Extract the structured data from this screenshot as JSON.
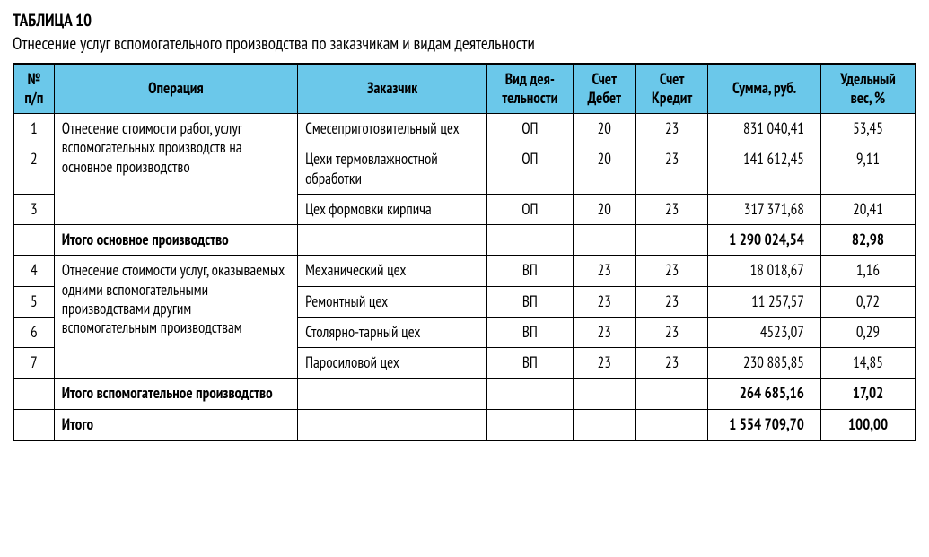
{
  "colors": {
    "header_bg": "#6bc8ea",
    "border": "#000000",
    "text": "#000000",
    "background": "#ffffff"
  },
  "title": {
    "number": "ТАБЛИЦА 10",
    "caption": "Отнесение услуг вспомогательного производства по заказчикам и видам деятельности"
  },
  "columns": [
    {
      "key": "num",
      "label": "№ п/п",
      "width_pct": 4.5,
      "align": "center"
    },
    {
      "key": "op",
      "label": "Операция",
      "width_pct": 27,
      "align": "left"
    },
    {
      "key": "cust",
      "label": "Заказчик",
      "width_pct": 21,
      "align": "left"
    },
    {
      "key": "act",
      "label": "Вид дея­тельности",
      "width_pct": 9.5,
      "align": "center"
    },
    {
      "key": "deb",
      "label": "Счет Дебет",
      "width_pct": 7,
      "align": "center"
    },
    {
      "key": "cred",
      "label": "Счет Кредит",
      "width_pct": 8,
      "align": "center"
    },
    {
      "key": "sum",
      "label": "Сумма, руб.",
      "width_pct": 12.5,
      "align": "right"
    },
    {
      "key": "wt",
      "label": "Удельный вес, %",
      "width_pct": 10.5,
      "align": "center"
    }
  ],
  "groups": [
    {
      "op_text": "Отнесение стоимости работ, услуг вспомогательных производств на основное производство",
      "rows": [
        {
          "num": "1",
          "cust": "Смесеприготовительный цех",
          "act": "ОП",
          "deb": "20",
          "cred": "23",
          "sum": "831 040,41",
          "wt": "53,45"
        },
        {
          "num": "2",
          "cust": "Цехи термовлажностной обработки",
          "act": "ОП",
          "deb": "20",
          "cred": "23",
          "sum": "141 612,45",
          "wt": "9,11"
        },
        {
          "num": "3",
          "cust": "Цех формовки кирпича",
          "act": "ОП",
          "deb": "20",
          "cred": "23",
          "sum": "317 371,68",
          "wt": "20,41"
        }
      ],
      "subtotal": {
        "label": "Итого основное производство",
        "sum": "1 290 024,54",
        "wt": "82,98"
      }
    },
    {
      "op_text": "Отнесение стоимости услуг, оказываемых одними вспомогательными производствами другим вспомогательным производствам",
      "rows": [
        {
          "num": "4",
          "cust": "Механический цех",
          "act": "ВП",
          "deb": "23",
          "cred": "23",
          "sum": "18 018,67",
          "wt": "1,16"
        },
        {
          "num": "5",
          "cust": "Ремонтный цех",
          "act": "ВП",
          "deb": "23",
          "cred": "23",
          "sum": "11 257,57",
          "wt": "0,72"
        },
        {
          "num": "6",
          "cust": "Столярно-тарный цех",
          "act": "ВП",
          "deb": "23",
          "cred": "23",
          "sum": "4523,07",
          "wt": "0,29"
        },
        {
          "num": "7",
          "cust": "Паросиловой цех",
          "act": "ВП",
          "deb": "23",
          "cred": "23",
          "sum": "230 885,85",
          "wt": "14,85"
        }
      ],
      "subtotal": {
        "label": "Итого вспомогательное производство",
        "sum": "264 685,16",
        "wt": "17,02"
      }
    }
  ],
  "grand_total": {
    "label": "Итого",
    "sum": "1 554 709,70",
    "wt": "100,00"
  },
  "typography": {
    "title_fontsize_pt": 14,
    "body_fontsize_pt": 13,
    "font_family": "condensed sans-serif"
  }
}
